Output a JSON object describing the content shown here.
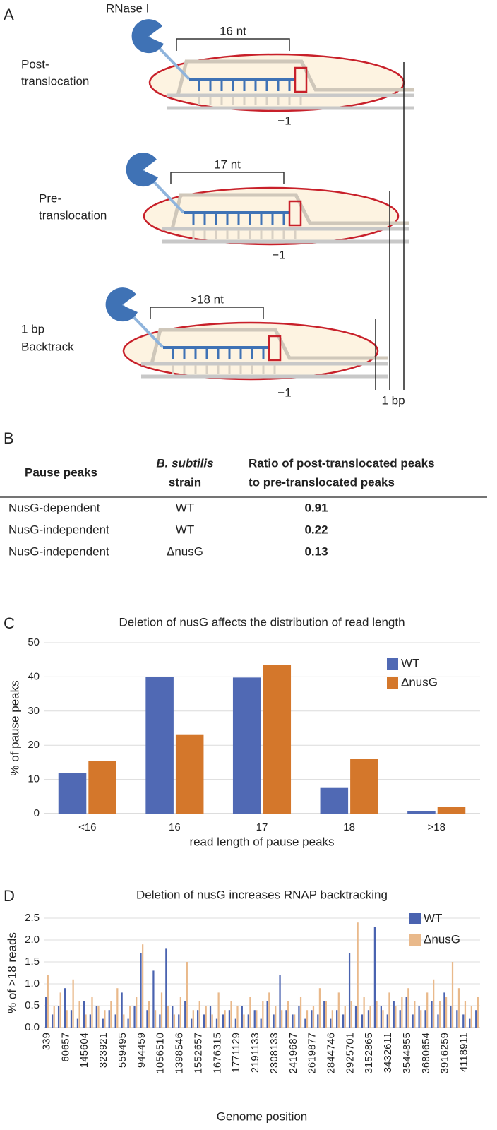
{
  "panel_labels": [
    "A",
    "B",
    "C",
    "D"
  ],
  "diagram": {
    "enzyme": "RNase I",
    "states": [
      {
        "label_lines": [
          "Post-",
          "translocation"
        ],
        "length": "16 nt",
        "position": "−1"
      },
      {
        "label_lines": [
          "Pre-",
          "translocation"
        ],
        "length": "17 nt",
        "position": "−1"
      },
      {
        "label_lines": [
          "1 bp",
          "Backtrack"
        ],
        "length": ">18 nt",
        "position": "−1"
      }
    ],
    "shift": "1 bp"
  },
  "table": {
    "header": [
      [
        "Pause peaks"
      ],
      [
        "B. subtilis",
        "strain"
      ],
      [
        "Ratio of post-translocated peaks",
        "to pre-translocated peaks"
      ]
    ],
    "rows": [
      [
        "NusG-dependent",
        "WT",
        "0.91"
      ],
      [
        "NusG-independent",
        "WT",
        "0.22"
      ],
      [
        "NusG-independent",
        "ΔnusG",
        "0.13"
      ]
    ]
  },
  "chart_data": [
    {
      "type": "bar",
      "title": "Deletion of nusG affects the distribution of read length",
      "x_label": "read length of pause peaks",
      "y_label": "% of pause peaks",
      "categories": [
        "<16",
        "16",
        "17",
        "18",
        ">18"
      ],
      "series": [
        {
          "name": "WT",
          "color": "#5069b4",
          "values": [
            11.8,
            40,
            39.8,
            7.5,
            0.8
          ]
        },
        {
          "name": "ΔnusG",
          "color": "#d4772b",
          "values": [
            15.3,
            23.2,
            43.4,
            16,
            2
          ]
        }
      ],
      "ylim": [
        0,
        50
      ],
      "yticks": [
        0,
        10,
        20,
        30,
        40,
        50
      ],
      "grid": true,
      "legend": "upper right"
    },
    {
      "type": "bar",
      "title": "Deletion of nusG increases RNAP backtracking",
      "x_label": "Genome position",
      "y_label": "% of >18 reads",
      "categories": [
        "339",
        null,
        null,
        "60657",
        null,
        null,
        "145604",
        null,
        null,
        "323921",
        null,
        null,
        "559495",
        null,
        null,
        "944459",
        null,
        null,
        "1056510",
        null,
        null,
        "1398546",
        null,
        null,
        "1552657",
        null,
        null,
        "1676315",
        null,
        null,
        "1771129",
        null,
        null,
        "2191133",
        null,
        null,
        "2308133",
        null,
        null,
        "2419687",
        null,
        null,
        "2619877",
        null,
        null,
        "2844746",
        null,
        null,
        "2925701",
        null,
        null,
        "3152865",
        null,
        null,
        "3432611",
        null,
        null,
        "3544855",
        null,
        null,
        "3680654",
        null,
        null,
        "3916259",
        null,
        null,
        "4118911",
        null,
        null
      ],
      "series": [
        {
          "name": "WT",
          "color": "#4a63b0",
          "values": [
            0.7,
            0.3,
            0.5,
            0.9,
            0.4,
            0.2,
            0.6,
            0.3,
            0.5,
            0.2,
            0.4,
            0.3,
            0.8,
            0.2,
            0.5,
            1.7,
            0.4,
            1.3,
            0.3,
            1.8,
            0.5,
            0.3,
            0.6,
            0.2,
            0.4,
            0.3,
            0.5,
            0.2,
            0.3,
            0.4,
            0.2,
            0.5,
            0.3,
            0.4,
            0.2,
            0.6,
            0.3,
            1.2,
            0.4,
            0.3,
            0.5,
            0.2,
            0.4,
            0.3,
            0.6,
            0.2,
            0.4,
            0.3,
            1.7,
            0.5,
            0.3,
            0.4,
            2.3,
            0.5,
            0.3,
            0.6,
            0.4,
            0.7,
            0.3,
            0.5,
            0.4,
            0.6,
            0.3,
            0.8,
            0.5,
            0.4,
            0.3,
            0.2,
            0.4
          ]
        },
        {
          "name": "ΔnusG",
          "color": "#e9b98b",
          "values": [
            1.2,
            0.5,
            0.8,
            0.4,
            1.1,
            0.6,
            0.3,
            0.7,
            0.5,
            0.4,
            0.6,
            0.9,
            0.3,
            0.5,
            0.7,
            1.9,
            0.6,
            0.4,
            0.8,
            0.5,
            0.3,
            0.7,
            1.5,
            0.4,
            0.6,
            0.5,
            0.3,
            0.8,
            0.4,
            0.6,
            0.5,
            0.3,
            0.7,
            0.4,
            0.6,
            0.8,
            0.5,
            0.4,
            0.6,
            0.3,
            0.7,
            0.4,
            0.5,
            0.9,
            0.6,
            0.4,
            0.8,
            0.5,
            0.6,
            2.4,
            0.7,
            0.5,
            0.6,
            0.4,
            0.8,
            0.5,
            0.7,
            0.9,
            0.6,
            0.4,
            0.8,
            1.1,
            0.6,
            0.7,
            1.5,
            0.9,
            0.6,
            0.5,
            0.7
          ]
        }
      ],
      "ylim": [
        0,
        2.5
      ],
      "yticks": [
        {
          "value": 0,
          "label": "0.0"
        },
        0.5,
        {
          "value": 1,
          "label": "1.0"
        },
        1.5,
        {
          "value": 2,
          "label": "2.0"
        },
        2.5
      ],
      "grid": true,
      "legend": "upper right"
    }
  ]
}
